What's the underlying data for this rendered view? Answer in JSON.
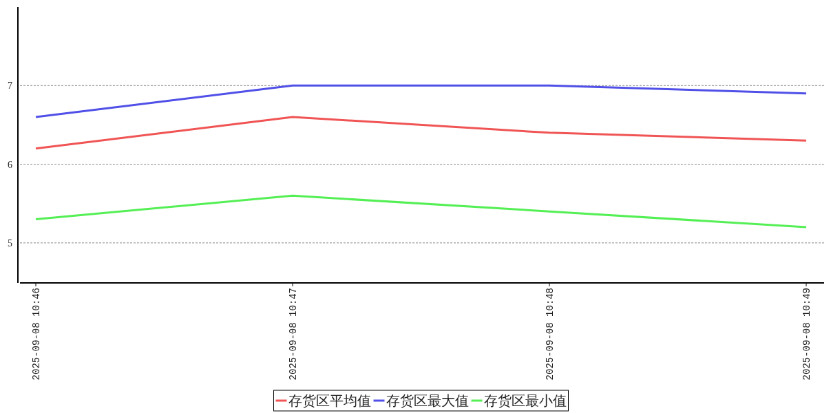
{
  "chart_data": {
    "type": "line",
    "categories": [
      "2025-09-08 10:46",
      "2025-09-08 10:47",
      "2025-09-08 10:48",
      "2025-09-08 10:49"
    ],
    "series": [
      {
        "name": "存货区平均值",
        "color": "#f05454",
        "values": [
          6.2,
          6.6,
          6.4,
          6.3
        ]
      },
      {
        "name": "存货区最大值",
        "color": "#5050e8",
        "values": [
          6.6,
          7.0,
          7.0,
          6.9
        ]
      },
      {
        "name": "存货区最小值",
        "color": "#54ef54",
        "values": [
          5.3,
          5.6,
          5.4,
          5.2
        ]
      }
    ],
    "ylim": [
      4.5,
      8
    ],
    "yticks": [
      5,
      6,
      7
    ],
    "grid": "y",
    "legend": "bottom"
  }
}
